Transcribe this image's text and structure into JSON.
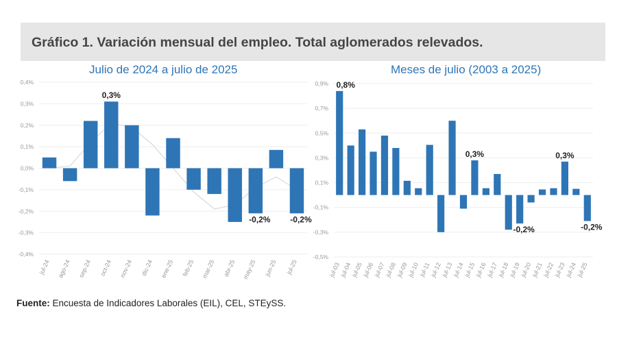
{
  "header": {
    "title": "Gráfico 1. Variación mensual del empleo. Total aglomerados relevados."
  },
  "chart_data": [
    {
      "type": "bar",
      "title": "Julio de 2024 a julio de 2025",
      "categories": [
        "jul-24",
        "ago-24",
        "sep-24",
        "oct-24",
        "nov-24",
        "dic-24",
        "ene-25",
        "feb-25",
        "mar-25",
        "abr-25",
        "may-25",
        "jun-25",
        "jul-25"
      ],
      "values": [
        0.05,
        -0.06,
        0.22,
        0.31,
        0.2,
        -0.22,
        0.14,
        -0.1,
        -0.12,
        -0.25,
        -0.21,
        0.085,
        -0.21
      ],
      "trend": [
        0.0,
        0.01,
        0.12,
        0.21,
        0.19,
        0.11,
        0.0,
        -0.11,
        -0.19,
        -0.17,
        -0.09,
        -0.04,
        -0.1
      ],
      "data_labels": {
        "3": "0,3%",
        "10": "-0,2%",
        "12": "-0,2%"
      },
      "yticks": [
        "0,4%",
        "0,3%",
        "0,2%",
        "0,1%",
        "0,0%",
        "-0,1%",
        "-0,2%",
        "-0,3%",
        "-0,4%"
      ],
      "ylim": [
        -0.4,
        0.4
      ],
      "grid": true,
      "bar_color": "#2e75b6",
      "trend_color": "#d9d9d9"
    },
    {
      "type": "bar",
      "title": "Meses de julio (2003 a 2025)",
      "categories": [
        "jul-03",
        "jul-04",
        "jul-05",
        "jul-06",
        "jul-07",
        "jul-08",
        "jul-09",
        "jul-10",
        "jul-11",
        "jul-12",
        "jul-13",
        "jul-14",
        "jul-15",
        "jul-16",
        "jul-17",
        "jul-18",
        "jul-19",
        "jul-20",
        "jul-21",
        "jul-22",
        "jul-23",
        "jul-24",
        "jul-25"
      ],
      "values": [
        0.84,
        0.4,
        0.53,
        0.35,
        0.48,
        0.38,
        0.115,
        0.055,
        0.405,
        -0.3,
        0.6,
        -0.11,
        0.28,
        0.055,
        0.17,
        -0.28,
        -0.23,
        -0.06,
        0.045,
        0.055,
        0.27,
        0.05,
        -0.21
      ],
      "data_labels": {
        "0": "0,8%",
        "12": "0,3%",
        "16": "-0,2%",
        "20": "0,3%",
        "22": "-0,2%"
      },
      "yticks": [
        "0,9%",
        "0,7%",
        "0,5%",
        "0,3%",
        "0,1%",
        "-0,1%",
        "-0,3%",
        "-0,5%"
      ],
      "ylim": [
        -0.5,
        0.9
      ],
      "grid": true,
      "bar_color": "#2e75b6"
    }
  ],
  "footer": {
    "source_label": "Fuente:",
    "source_text": " Encuesta de Indicadores Laborales (EIL), CEL, STEySS."
  }
}
